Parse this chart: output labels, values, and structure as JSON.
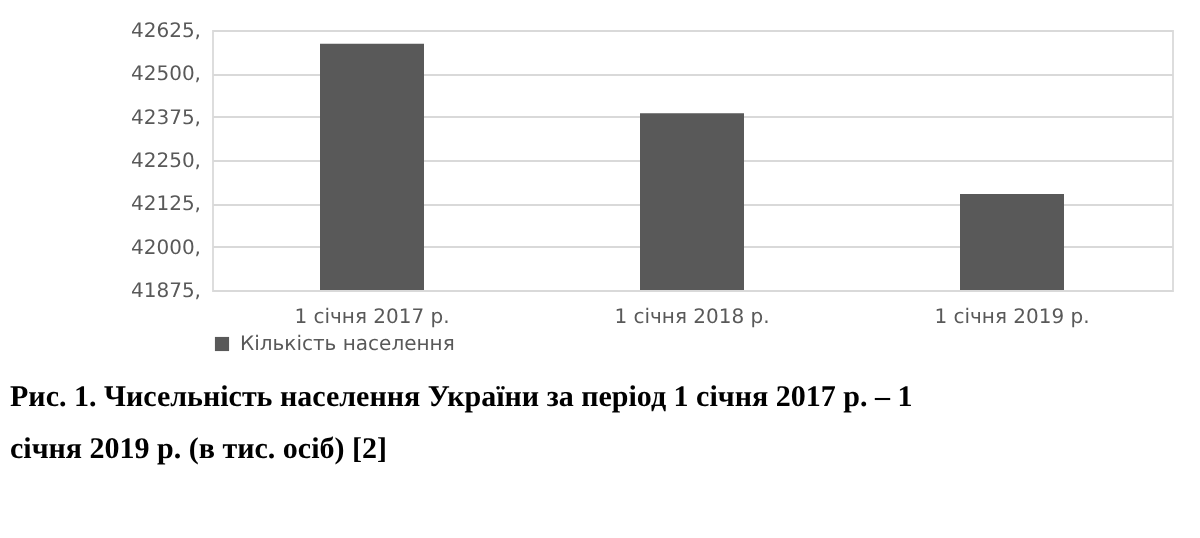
{
  "chart_data": {
    "type": "bar",
    "categories": [
      "1 січня 2017 р.",
      "1 січня 2018 р.",
      "1 січня 2019 р."
    ],
    "series": [
      {
        "name": "Кількість населення",
        "color": "#595959",
        "values": [
          42585,
          42385,
          42152
        ]
      }
    ],
    "ylim": [
      41875,
      42625
    ],
    "yticks": [
      {
        "value": 41875,
        "label": "41875,"
      },
      {
        "value": 42000,
        "label": "42000,"
      },
      {
        "value": 42125,
        "label": "42125,"
      },
      {
        "value": 42250,
        "label": "42250,"
      },
      {
        "value": 42375,
        "label": "42375,"
      },
      {
        "value": 42500,
        "label": "42500,"
      },
      {
        "value": 42625,
        "label": "42625,"
      }
    ],
    "grid": "y",
    "legend": "bottom",
    "annotations": [
      "Рис. 1. Чисельність населення України за період 1 січня 2017 р. – 1 січня 2019 р. (в тис. осіб) [2]"
    ]
  }
}
